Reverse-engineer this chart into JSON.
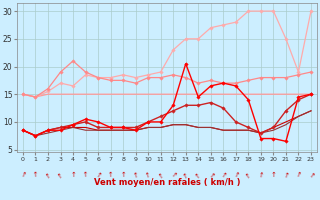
{
  "xlabel": "Vent moyen/en rafales ( km/h )",
  "xlim": [
    -0.5,
    23.5
  ],
  "ylim": [
    4.5,
    31.5
  ],
  "yticks": [
    5,
    10,
    15,
    20,
    25,
    30
  ],
  "xticks": [
    0,
    1,
    2,
    3,
    4,
    5,
    6,
    7,
    8,
    9,
    10,
    11,
    12,
    13,
    14,
    15,
    16,
    17,
    18,
    19,
    20,
    21,
    22,
    23
  ],
  "bg_color": "#cceeff",
  "grid_color": "#aacccc",
  "lines": [
    {
      "x": [
        0,
        1,
        2,
        3,
        4,
        5,
        6,
        7,
        8,
        9,
        10,
        11,
        12,
        13,
        14,
        15,
        16,
        17,
        18,
        19,
        20,
        21,
        22,
        23
      ],
      "y": [
        15,
        14.5,
        15,
        15,
        15,
        15,
        15,
        15,
        15,
        15,
        15,
        15,
        15,
        15,
        15,
        15,
        15,
        15,
        15,
        15,
        15,
        15,
        15,
        15
      ],
      "color": "#ff9999",
      "lw": 0.9,
      "marker": null
    },
    {
      "x": [
        0,
        1,
        2,
        3,
        4,
        5,
        6,
        7,
        8,
        9,
        10,
        11,
        12,
        13,
        14,
        15,
        16,
        17,
        18,
        19,
        20,
        21,
        22,
        23
      ],
      "y": [
        15,
        14.5,
        15.5,
        17,
        16.5,
        18.5,
        18,
        18,
        18.5,
        18,
        18.5,
        19,
        23,
        25,
        25,
        27,
        27.5,
        28,
        30,
        30,
        30,
        25,
        19,
        30
      ],
      "color": "#ffaaaa",
      "lw": 0.9,
      "marker": "D",
      "ms": 1.8
    },
    {
      "x": [
        0,
        1,
        2,
        3,
        4,
        5,
        6,
        7,
        8,
        9,
        10,
        11,
        12,
        13,
        14,
        15,
        16,
        17,
        18,
        19,
        20,
        21,
        22,
        23
      ],
      "y": [
        15,
        14.5,
        16,
        19,
        21,
        19,
        18,
        17.5,
        17.5,
        17,
        18,
        18,
        18.5,
        18,
        17,
        17.5,
        17,
        17,
        17.5,
        18,
        18,
        18,
        18.5,
        19
      ],
      "color": "#ff8888",
      "lw": 0.9,
      "marker": "D",
      "ms": 1.8
    },
    {
      "x": [
        0,
        1,
        2,
        3,
        4,
        5,
        6,
        7,
        8,
        9,
        10,
        11,
        12,
        13,
        14,
        15,
        16,
        17,
        18,
        19,
        20,
        21,
        22,
        23
      ],
      "y": [
        8.5,
        7.5,
        8.5,
        9,
        9.5,
        10,
        9,
        9,
        9,
        9,
        10,
        11,
        12,
        13,
        13,
        13.5,
        12.5,
        10,
        9,
        8,
        9,
        12,
        14,
        15
      ],
      "color": "#cc2222",
      "lw": 1.0,
      "marker": "D",
      "ms": 1.8
    },
    {
      "x": [
        0,
        1,
        2,
        3,
        4,
        5,
        6,
        7,
        8,
        9,
        10,
        11,
        12,
        13,
        14,
        15,
        16,
        17,
        18,
        19,
        20,
        21,
        22,
        23
      ],
      "y": [
        8.5,
        7.5,
        8.5,
        8.5,
        9.5,
        10.5,
        10,
        9,
        9,
        8.5,
        10,
        10,
        13,
        20.5,
        14.5,
        16.5,
        17,
        16.5,
        14,
        7,
        7,
        6.5,
        14.5,
        15
      ],
      "color": "#ff0000",
      "lw": 1.0,
      "marker": "D",
      "ms": 1.8
    },
    {
      "x": [
        0,
        1,
        2,
        3,
        4,
        5,
        6,
        7,
        8,
        9,
        10,
        11,
        12,
        13,
        14,
        15,
        16,
        17,
        18,
        19,
        20,
        21,
        22,
        23
      ],
      "y": [
        8.5,
        7.5,
        8.5,
        9,
        9,
        9,
        8.5,
        8.5,
        8.5,
        8.5,
        9,
        9,
        9.5,
        9.5,
        9,
        9,
        8.5,
        8.5,
        8.5,
        8,
        9,
        10,
        11,
        12
      ],
      "color": "#cc0000",
      "lw": 0.8,
      "marker": null
    },
    {
      "x": [
        0,
        1,
        2,
        3,
        4,
        5,
        6,
        7,
        8,
        9,
        10,
        11,
        12,
        13,
        14,
        15,
        16,
        17,
        18,
        19,
        20,
        21,
        22,
        23
      ],
      "y": [
        8.5,
        7.5,
        8,
        8.5,
        9,
        8.5,
        8.5,
        8.5,
        8.5,
        8.5,
        9,
        9,
        9.5,
        9.5,
        9,
        9,
        8.5,
        8.5,
        8.5,
        8,
        8.5,
        9.5,
        11,
        12
      ],
      "color": "#993333",
      "lw": 0.8,
      "marker": null
    }
  ],
  "wind_arrow_color": "#cc0000",
  "arrow_chars": [
    "↑",
    "↗",
    "→",
    "↘",
    "↓",
    "↙",
    "←",
    "↖"
  ]
}
